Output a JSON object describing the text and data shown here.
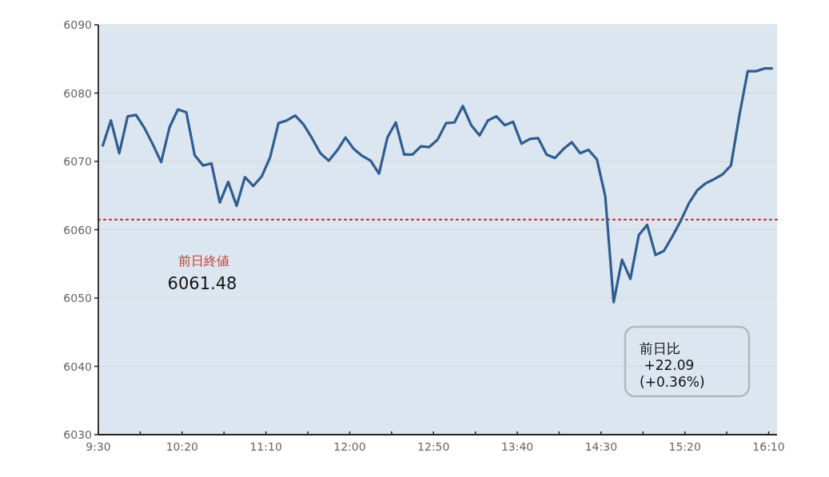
{
  "chart_data": {
    "type": "line",
    "x": [
      9.5417,
      9.625,
      9.7083,
      9.7917,
      9.875,
      9.9583,
      10.0417,
      10.125,
      10.2083,
      10.2917,
      10.375,
      10.4583,
      10.5417,
      10.625,
      10.7083,
      10.7917,
      10.875,
      10.9583,
      11.0417,
      11.125,
      11.2083,
      11.2917,
      11.375,
      11.4583,
      11.5417,
      11.625,
      11.7083,
      11.7917,
      11.875,
      11.9583,
      12.0417,
      12.125,
      12.2083,
      12.2917,
      12.375,
      12.4583,
      12.5417,
      12.625,
      12.7083,
      12.7917,
      12.875,
      12.9583,
      13.0417,
      13.125,
      13.2083,
      13.2917,
      13.375,
      13.4583,
      13.5417,
      13.625,
      13.7083,
      13.7917,
      13.875,
      13.9583,
      14.0417,
      14.125,
      14.2083,
      14.2917,
      14.375,
      14.4583,
      14.5417,
      14.625,
      14.7083,
      14.7917,
      14.875,
      14.9583,
      15.0417,
      15.125,
      15.2083,
      15.2917,
      15.375,
      15.4583,
      15.5417,
      15.625,
      15.7083,
      15.7917,
      15.875,
      15.9583,
      16.0417,
      16.125,
      16.2083
    ],
    "series": [
      {
        "color": "#2f5d8f",
        "values": [
          6072.2,
          6076.0,
          6071.2,
          6076.6,
          6076.8,
          6074.9,
          6072.5,
          6069.9,
          6075.0,
          6077.6,
          6077.2,
          6070.9,
          6069.4,
          6069.7,
          6064.0,
          6067.0,
          6063.5,
          6067.7,
          6066.4,
          6067.8,
          6070.6,
          6075.6,
          6076.0,
          6076.7,
          6075.4,
          6073.4,
          6071.2,
          6070.1,
          6071.6,
          6073.5,
          6071.8,
          6070.8,
          6070.1,
          6068.2,
          6073.5,
          6075.7,
          6071.0,
          6071.0,
          6072.2,
          6072.1,
          6073.2,
          6075.6,
          6075.7,
          6078.1,
          6075.3,
          6073.8,
          6076.0,
          6076.6,
          6075.3,
          6075.8,
          6072.6,
          6073.3,
          6073.4,
          6071.0,
          6070.5,
          6071.8,
          6072.8,
          6071.2,
          6071.7,
          6070.3,
          6064.9,
          6049.4,
          6055.6,
          6052.8,
          6059.2,
          6060.7,
          6056.3,
          6056.9,
          6059.0,
          6061.3,
          6063.9,
          6065.8,
          6066.8,
          6067.4,
          6068.1,
          6069.4,
          6076.7,
          6083.2,
          6083.2,
          6083.6,
          6083.6
        ]
      }
    ],
    "xlim": [
      9.5,
      16.25
    ],
    "xticks": [
      {
        "value": 9.5,
        "label": "9:30"
      },
      {
        "value": 9.9167,
        "label": null
      },
      {
        "value": 10.3333,
        "label": "10:20"
      },
      {
        "value": 10.75,
        "label": null
      },
      {
        "value": 11.1667,
        "label": "11:10"
      },
      {
        "value": 11.5833,
        "label": null
      },
      {
        "value": 12,
        "label": "12:00"
      },
      {
        "value": 12.4167,
        "label": null
      },
      {
        "value": 12.8333,
        "label": "12:50"
      },
      {
        "value": 13.25,
        "label": null
      },
      {
        "value": 13.6667,
        "label": "13:40"
      },
      {
        "value": 14.0833,
        "label": null
      },
      {
        "value": 14.5,
        "label": "14:30"
      },
      {
        "value": 14.9167,
        "label": null
      },
      {
        "value": 15.3333,
        "label": "15:20"
      },
      {
        "value": 15.75,
        "label": null
      },
      {
        "value": 16.1667,
        "label": "16:10"
      }
    ],
    "ylim": [
      6030,
      6090
    ],
    "yticks": [
      6030,
      6040,
      6050,
      6060,
      6070,
      6080,
      6090
    ],
    "grid": "y",
    "line_style": "solid",
    "marker": "none",
    "ref_lines": [
      {
        "axis": "y",
        "value": 6061.48,
        "label": "前日終値",
        "color": "#c0392b",
        "line_style": "dotted"
      }
    ],
    "annotations": [
      "6061.48",
      "前日比\n +22.09\n(+0.36%)"
    ]
  }
}
